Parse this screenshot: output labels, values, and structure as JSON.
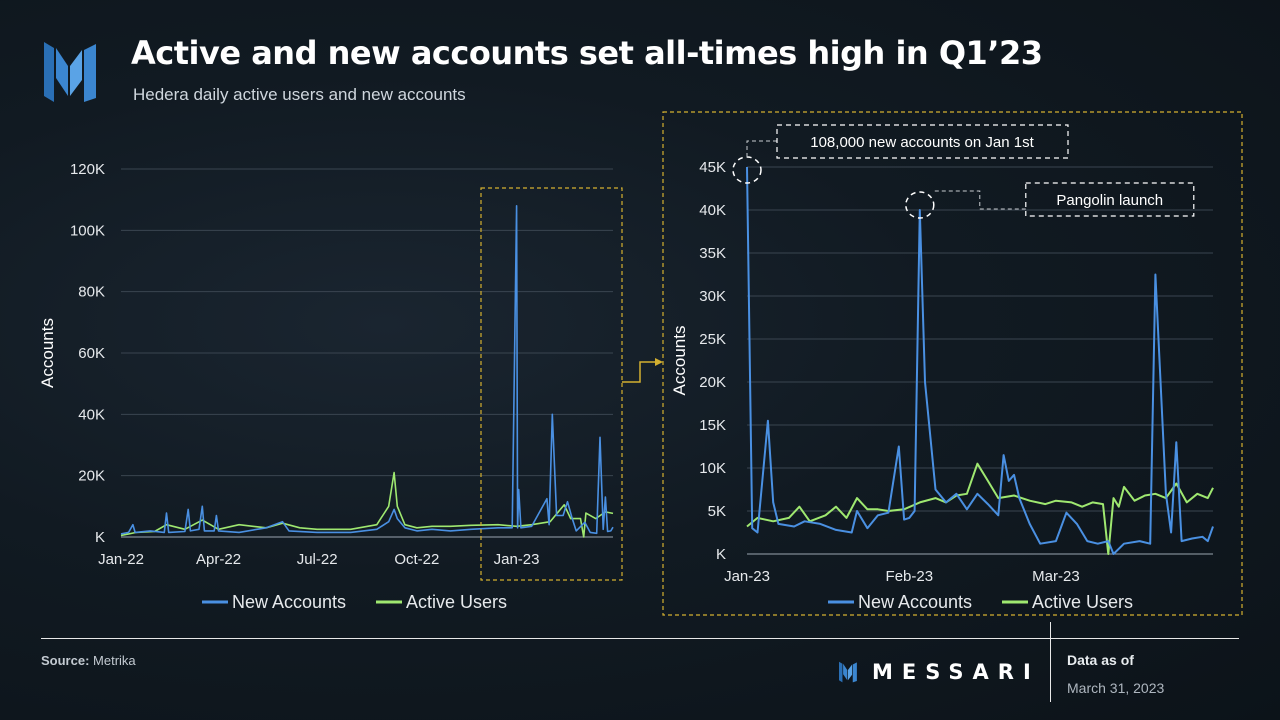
{
  "header": {
    "title": "Active and new accounts set all-times high in Q1’23",
    "subtitle": "Hedera daily active users and new accounts"
  },
  "colors": {
    "new_accounts": "#4a90e2",
    "active_users": "#9fe870",
    "highlight_box": "#d4b030",
    "grid": "#3a4550"
  },
  "chart_data": [
    {
      "type": "line",
      "xlabel": "",
      "ylabel": "Accounts",
      "ylim": [
        0,
        120000
      ],
      "xlim": [
        "2022-01-01",
        "2023-03-31"
      ],
      "y_ticks": [
        0,
        20000,
        40000,
        60000,
        80000,
        100000,
        120000
      ],
      "y_tick_labels": [
        "K",
        "20K",
        "40K",
        "60K",
        "80K",
        "100K",
        "120K"
      ],
      "x_ticks": [
        "2022-01-01",
        "2022-04-01",
        "2022-07-01",
        "2022-10-01",
        "2023-01-01"
      ],
      "x_tick_labels": [
        "Jan-22",
        "Apr-22",
        "Jul-22",
        "Oct-22",
        "Jan-23"
      ],
      "grid": true,
      "legend": "bottom",
      "series": [
        {
          "name": "New Accounts",
          "points": [
            [
              "2022-01-01",
              1000
            ],
            [
              "2022-01-08",
              1500
            ],
            [
              "2022-01-12",
              4000
            ],
            [
              "2022-01-14",
              1500
            ],
            [
              "2022-01-28",
              2000
            ],
            [
              "2022-02-10",
              1500
            ],
            [
              "2022-02-12",
              7800
            ],
            [
              "2022-02-14",
              1500
            ],
            [
              "2022-03-01",
              1800
            ],
            [
              "2022-03-04",
              9000
            ],
            [
              "2022-03-06",
              2000
            ],
            [
              "2022-03-14",
              2500
            ],
            [
              "2022-03-17",
              10000
            ],
            [
              "2022-03-19",
              2000
            ],
            [
              "2022-03-28",
              2000
            ],
            [
              "2022-03-30",
              7000
            ],
            [
              "2022-04-01",
              2000
            ],
            [
              "2022-04-20",
              1500
            ],
            [
              "2022-05-15",
              3000
            ],
            [
              "2022-05-30",
              5000
            ],
            [
              "2022-06-05",
              2000
            ],
            [
              "2022-07-01",
              1500
            ],
            [
              "2022-08-01",
              1500
            ],
            [
              "2022-08-25",
              2500
            ],
            [
              "2022-09-05",
              5000
            ],
            [
              "2022-09-10",
              9000
            ],
            [
              "2022-09-13",
              6000
            ],
            [
              "2022-09-20",
              3000
            ],
            [
              "2022-10-01",
              2000
            ],
            [
              "2022-10-15",
              2500
            ],
            [
              "2022-11-01",
              2000
            ],
            [
              "2022-11-20",
              2500
            ],
            [
              "2022-12-15",
              3000
            ],
            [
              "2022-12-28",
              3000
            ],
            [
              "2023-01-01",
              108000
            ],
            [
              "2023-01-02",
              3000
            ],
            [
              "2023-01-03",
              15500
            ],
            [
              "2023-01-05",
              3000
            ],
            [
              "2023-01-15",
              3500
            ],
            [
              "2023-01-29",
              12500
            ],
            [
              "2023-01-31",
              4000
            ],
            [
              "2023-02-03",
              40000
            ],
            [
              "2023-02-07",
              7000
            ],
            [
              "2023-02-13",
              7000
            ],
            [
              "2023-02-17",
              11500
            ],
            [
              "2023-02-21",
              6500
            ],
            [
              "2023-02-25",
              2000
            ],
            [
              "2023-03-05",
              4800
            ],
            [
              "2023-03-10",
              1500
            ],
            [
              "2023-03-16",
              1200
            ],
            [
              "2023-03-19",
              32500
            ],
            [
              "2023-03-22",
              2500
            ],
            [
              "2023-03-24",
              13000
            ],
            [
              "2023-03-26",
              1800
            ],
            [
              "2023-03-29",
              2000
            ],
            [
              "2023-03-31",
              3200
            ]
          ]
        },
        {
          "name": "Active Users",
          "points": [
            [
              "2022-01-01",
              500
            ],
            [
              "2022-01-15",
              1500
            ],
            [
              "2022-02-01",
              1800
            ],
            [
              "2022-02-12",
              4000
            ],
            [
              "2022-03-01",
              2500
            ],
            [
              "2022-03-17",
              5500
            ],
            [
              "2022-04-01",
              2500
            ],
            [
              "2022-04-20",
              4000
            ],
            [
              "2022-05-15",
              3000
            ],
            [
              "2022-05-30",
              4500
            ],
            [
              "2022-06-15",
              3000
            ],
            [
              "2022-07-01",
              2500
            ],
            [
              "2022-08-01",
              2500
            ],
            [
              "2022-08-25",
              4000
            ],
            [
              "2022-09-05",
              10000
            ],
            [
              "2022-09-10",
              21000
            ],
            [
              "2022-09-13",
              10000
            ],
            [
              "2022-09-20",
              4000
            ],
            [
              "2022-10-01",
              3000
            ],
            [
              "2022-10-15",
              3500
            ],
            [
              "2022-11-01",
              3500
            ],
            [
              "2022-11-20",
              3800
            ],
            [
              "2022-12-15",
              4000
            ],
            [
              "2023-01-01",
              3500
            ],
            [
              "2023-01-15",
              4000
            ],
            [
              "2023-02-01",
              5000
            ],
            [
              "2023-02-14",
              10500
            ],
            [
              "2023-02-20",
              6000
            ],
            [
              "2023-03-01",
              6000
            ],
            [
              "2023-03-04",
              0
            ],
            [
              "2023-03-06",
              7800
            ],
            [
              "2023-03-15",
              6000
            ],
            [
              "2023-03-24",
              8200
            ],
            [
              "2023-03-31",
              7700
            ]
          ]
        }
      ]
    },
    {
      "type": "line",
      "xlabel": "",
      "ylabel": "Accounts",
      "ylim": [
        0,
        45000
      ],
      "xlim": [
        "2023-01-01",
        "2023-03-31"
      ],
      "y_ticks": [
        0,
        5000,
        10000,
        15000,
        20000,
        25000,
        30000,
        35000,
        40000,
        45000
      ],
      "y_tick_labels": [
        "K",
        "5K",
        "10K",
        "15K",
        "20K",
        "25K",
        "30K",
        "35K",
        "40K",
        "45K"
      ],
      "x_ticks": [
        "2023-01-01",
        "2023-02-01",
        "2023-03-01"
      ],
      "x_tick_labels": [
        "Jan-23",
        "Feb-23",
        "Mar-23"
      ],
      "grid": true,
      "legend": "bottom",
      "annotations": [
        {
          "text": "108,000 new accounts on Jan 1st",
          "x": "2023-01-01",
          "y": 45000
        },
        {
          "text": "Pangolin launch",
          "x": "2023-02-03",
          "y": 40000
        }
      ],
      "series": [
        {
          "name": "New Accounts",
          "points": [
            [
              "2023-01-01",
              45000
            ],
            [
              "2023-01-02",
              3000
            ],
            [
              "2023-01-03",
              2500
            ],
            [
              "2023-01-05",
              15500
            ],
            [
              "2023-01-06",
              6000
            ],
            [
              "2023-01-07",
              3500
            ],
            [
              "2023-01-10",
              3200
            ],
            [
              "2023-01-12",
              3800
            ],
            [
              "2023-01-15",
              3500
            ],
            [
              "2023-01-18",
              2800
            ],
            [
              "2023-01-21",
              2500
            ],
            [
              "2023-01-22",
              5000
            ],
            [
              "2023-01-24",
              3000
            ],
            [
              "2023-01-26",
              4500
            ],
            [
              "2023-01-28",
              4800
            ],
            [
              "2023-01-30",
              12500
            ],
            [
              "2023-01-31",
              4000
            ],
            [
              "2023-02-01",
              4200
            ],
            [
              "2023-02-02",
              5000
            ],
            [
              "2023-02-03",
              40000
            ],
            [
              "2023-02-04",
              20000
            ],
            [
              "2023-02-06",
              7500
            ],
            [
              "2023-02-08",
              6000
            ],
            [
              "2023-02-10",
              7000
            ],
            [
              "2023-02-12",
              5200
            ],
            [
              "2023-02-14",
              7000
            ],
            [
              "2023-02-16",
              5800
            ],
            [
              "2023-02-18",
              4500
            ],
            [
              "2023-02-19",
              11500
            ],
            [
              "2023-02-20",
              8500
            ],
            [
              "2023-02-21",
              9200
            ],
            [
              "2023-02-22",
              6500
            ],
            [
              "2023-02-24",
              3500
            ],
            [
              "2023-02-26",
              1200
            ],
            [
              "2023-03-01",
              1500
            ],
            [
              "2023-03-03",
              4800
            ],
            [
              "2023-03-05",
              3500
            ],
            [
              "2023-03-07",
              1500
            ],
            [
              "2023-03-09",
              1200
            ],
            [
              "2023-03-11",
              1500
            ],
            [
              "2023-03-12",
              0
            ],
            [
              "2023-03-14",
              1200
            ],
            [
              "2023-03-17",
              1500
            ],
            [
              "2023-03-19",
              1200
            ],
            [
              "2023-03-20",
              32500
            ],
            [
              "2023-03-22",
              7000
            ],
            [
              "2023-03-23",
              2500
            ],
            [
              "2023-03-24",
              13000
            ],
            [
              "2023-03-25",
              1500
            ],
            [
              "2023-03-27",
              1800
            ],
            [
              "2023-03-29",
              2000
            ],
            [
              "2023-03-30",
              1500
            ],
            [
              "2023-03-31",
              3200
            ]
          ]
        },
        {
          "name": "Active Users",
          "points": [
            [
              "2023-01-01",
              3200
            ],
            [
              "2023-01-03",
              4200
            ],
            [
              "2023-01-06",
              3800
            ],
            [
              "2023-01-09",
              4200
            ],
            [
              "2023-01-11",
              5500
            ],
            [
              "2023-01-13",
              3800
            ],
            [
              "2023-01-16",
              4500
            ],
            [
              "2023-01-18",
              5500
            ],
            [
              "2023-01-20",
              4200
            ],
            [
              "2023-01-22",
              6500
            ],
            [
              "2023-01-24",
              5200
            ],
            [
              "2023-01-26",
              5200
            ],
            [
              "2023-01-28",
              5000
            ],
            [
              "2023-01-31",
              5200
            ],
            [
              "2023-02-03",
              6000
            ],
            [
              "2023-02-06",
              6500
            ],
            [
              "2023-02-08",
              6000
            ],
            [
              "2023-02-10",
              6800
            ],
            [
              "2023-02-12",
              7000
            ],
            [
              "2023-02-14",
              10500
            ],
            [
              "2023-02-16",
              8500
            ],
            [
              "2023-02-18",
              6500
            ],
            [
              "2023-02-21",
              6800
            ],
            [
              "2023-02-24",
              6200
            ],
            [
              "2023-02-27",
              5800
            ],
            [
              "2023-03-01",
              6200
            ],
            [
              "2023-03-04",
              6000
            ],
            [
              "2023-03-06",
              5500
            ],
            [
              "2023-03-08",
              6000
            ],
            [
              "2023-03-10",
              5800
            ],
            [
              "2023-03-11",
              0
            ],
            [
              "2023-03-12",
              6500
            ],
            [
              "2023-03-13",
              5500
            ],
            [
              "2023-03-14",
              7800
            ],
            [
              "2023-03-16",
              6200
            ],
            [
              "2023-03-18",
              6800
            ],
            [
              "2023-03-20",
              7000
            ],
            [
              "2023-03-22",
              6500
            ],
            [
              "2023-03-24",
              8200
            ],
            [
              "2023-03-26",
              6000
            ],
            [
              "2023-03-28",
              7000
            ],
            [
              "2023-03-30",
              6500
            ],
            [
              "2023-03-31",
              7700
            ]
          ]
        }
      ]
    }
  ],
  "footer": {
    "source_label": "Source:",
    "source_value": "Metrika",
    "brand": "MESSARI",
    "data_as_of_label": "Data as of",
    "data_as_of_date": "March 31, 2023"
  }
}
